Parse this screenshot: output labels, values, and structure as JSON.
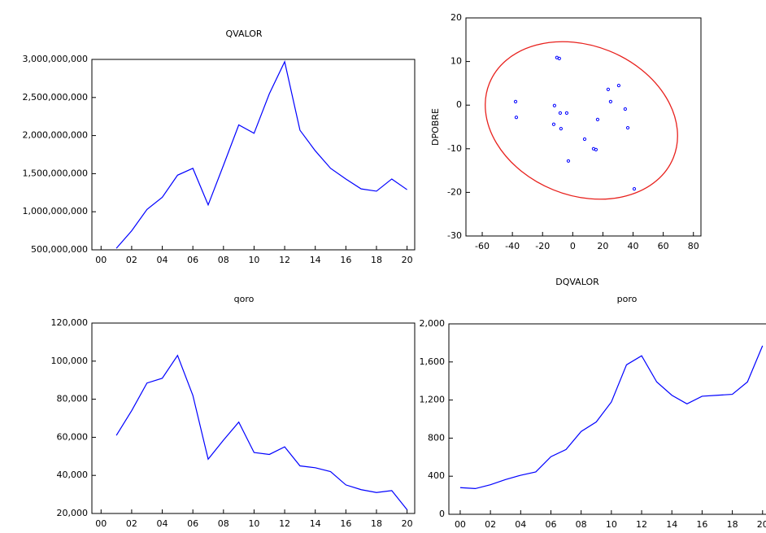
{
  "chart_data": [
    {
      "type": "line",
      "title": "QVALOR",
      "color": "#0000ff",
      "x": [
        2001,
        2002,
        2003,
        2004,
        2005,
        2006,
        2007,
        2008,
        2009,
        2010,
        2011,
        2012,
        2013,
        2014,
        2015,
        2016,
        2017,
        2018,
        2019,
        2020
      ],
      "values": [
        520000000,
        750000000,
        1030000000,
        1190000000,
        1480000000,
        1570000000,
        1090000000,
        1610000000,
        2140000000,
        2030000000,
        2550000000,
        2970000000,
        2070000000,
        1800000000,
        1570000000,
        1430000000,
        1300000000,
        1270000000,
        1430000000,
        1290000000
      ],
      "xlim": [
        1999.4,
        2020.5
      ],
      "xticks": [
        {
          "value": 2000,
          "label": "00"
        },
        {
          "value": 2002,
          "label": "02"
        },
        {
          "value": 2004,
          "label": "04"
        },
        {
          "value": 2006,
          "label": "06"
        },
        {
          "value": 2008,
          "label": "08"
        },
        {
          "value": 2010,
          "label": "10"
        },
        {
          "value": 2012,
          "label": "12"
        },
        {
          "value": 2014,
          "label": "14"
        },
        {
          "value": 2016,
          "label": "16"
        },
        {
          "value": 2018,
          "label": "18"
        },
        {
          "value": 2020,
          "label": "20"
        }
      ],
      "ylim": [
        500000000,
        3000000000
      ],
      "yticks": [
        {
          "value": 500000000,
          "label": "500,000,000"
        },
        {
          "value": 1000000000,
          "label": "1,000,000,000"
        },
        {
          "value": 1500000000,
          "label": "1,500,000,000"
        },
        {
          "value": 2000000000,
          "label": "2,000,000,000"
        },
        {
          "value": 2500000000,
          "label": "2,500,000,000"
        },
        {
          "value": 3000000000,
          "label": "3,000,000,000"
        }
      ]
    },
    {
      "type": "scatter",
      "xlabel": "DQVALOR",
      "ylabel": "DPOBRE",
      "color": "#0000ff",
      "x": [
        -37.9,
        -37.4,
        -10.5,
        -8.9,
        -12.1,
        -8.3,
        -4.0,
        -7.8,
        -12.6,
        -2.9,
        7.9,
        13.8,
        15.4,
        16.5,
        23.5,
        25.1,
        30.5,
        34.8,
        36.5,
        40.8
      ],
      "values": [
        0.8,
        -2.8,
        10.9,
        10.7,
        -0.1,
        -1.8,
        -1.8,
        -5.4,
        -4.4,
        -12.8,
        -7.8,
        -10.0,
        -10.2,
        -3.3,
        3.6,
        0.8,
        4.5,
        -0.9,
        -5.2,
        -19.2
      ],
      "xlim": [
        -70.8,
        85
      ],
      "xticks": [
        -60,
        -40,
        -20,
        0,
        20,
        40,
        60,
        80
      ],
      "ylim": [
        -30,
        20
      ],
      "yticks": [
        -30,
        -20,
        -10,
        0,
        10,
        20
      ]
    },
    {
      "type": "line",
      "title": "qoro",
      "color": "#0000ff",
      "x": [
        2001,
        2002,
        2003,
        2004,
        2005,
        2006,
        2007,
        2008,
        2009,
        2010,
        2011,
        2012,
        2013,
        2014,
        2015,
        2016,
        2017,
        2018,
        2019,
        2020
      ],
      "values": [
        61000,
        74000,
        88500,
        91000,
        103000,
        82000,
        48500,
        58500,
        68000,
        52000,
        51000,
        55000,
        45000,
        44000,
        42000,
        35000,
        32500,
        31000,
        32000,
        22000
      ],
      "xlim": [
        1999.4,
        2020.5
      ],
      "xticks": [
        {
          "value": 2000,
          "label": "00"
        },
        {
          "value": 2002,
          "label": "02"
        },
        {
          "value": 2004,
          "label": "04"
        },
        {
          "value": 2006,
          "label": "06"
        },
        {
          "value": 2008,
          "label": "08"
        },
        {
          "value": 2010,
          "label": "10"
        },
        {
          "value": 2012,
          "label": "12"
        },
        {
          "value": 2014,
          "label": "14"
        },
        {
          "value": 2016,
          "label": "16"
        },
        {
          "value": 2018,
          "label": "18"
        },
        {
          "value": 2020,
          "label": "20"
        }
      ],
      "ylim": [
        20000,
        120000
      ],
      "yticks": [
        {
          "value": 20000,
          "label": "20,000"
        },
        {
          "value": 40000,
          "label": "40,000"
        },
        {
          "value": 60000,
          "label": "60,000"
        },
        {
          "value": 80000,
          "label": "80,000"
        },
        {
          "value": 100000,
          "label": "100,000"
        },
        {
          "value": 120000,
          "label": "120,000"
        }
      ]
    },
    {
      "type": "line",
      "title": "poro",
      "color": "#0000ff",
      "x": [
        2000,
        2001,
        2002,
        2003,
        2004,
        2005,
        2006,
        2007,
        2008,
        2009,
        2010,
        2011,
        2012,
        2013,
        2014,
        2015,
        2016,
        2017,
        2018,
        2019,
        2020
      ],
      "values": [
        280,
        270,
        310,
        365,
        410,
        445,
        605,
        680,
        870,
        970,
        1180,
        1570,
        1665,
        1390,
        1250,
        1160,
        1240,
        1250,
        1260,
        1390,
        1770
      ],
      "xlim": [
        1999.25,
        2020.55
      ],
      "xticks": [
        {
          "value": 2000,
          "label": "00"
        },
        {
          "value": 2002,
          "label": "02"
        },
        {
          "value": 2004,
          "label": "04"
        },
        {
          "value": 2006,
          "label": "06"
        },
        {
          "value": 2008,
          "label": "08"
        },
        {
          "value": 2010,
          "label": "10"
        },
        {
          "value": 2012,
          "label": "12"
        },
        {
          "value": 2014,
          "label": "14"
        },
        {
          "value": 2016,
          "label": "16"
        },
        {
          "value": 2018,
          "label": "18"
        },
        {
          "value": 2020,
          "label": "20"
        }
      ],
      "ylim": [
        0,
        2000
      ],
      "yticks": [
        0,
        400,
        800,
        {
          "value": 1200,
          "label": "1,200"
        },
        {
          "value": 1600,
          "label": "1,600"
        },
        {
          "value": 2000,
          "label": "2,000"
        }
      ]
    }
  ]
}
